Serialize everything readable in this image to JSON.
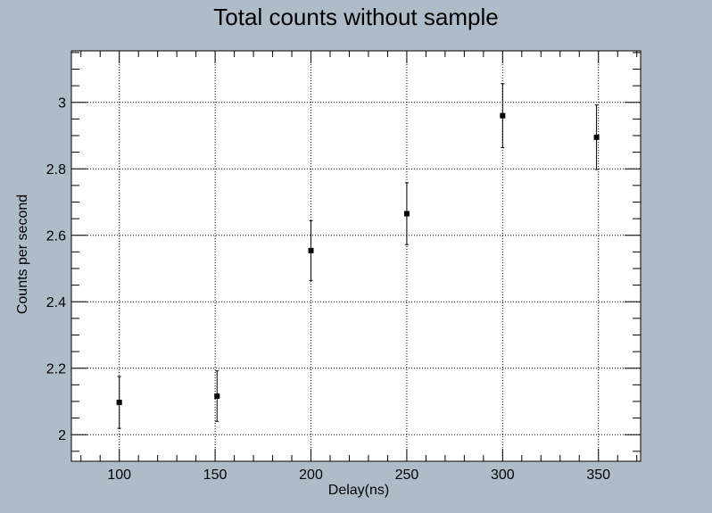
{
  "chart_data": {
    "type": "scatter",
    "title": "Total counts without sample",
    "xlabel": "Delay(ns)",
    "ylabel": "Counts per second",
    "xlim": [
      75,
      372
    ],
    "ylim": [
      1.92,
      3.155
    ],
    "xticks": [
      100,
      150,
      200,
      250,
      300,
      350
    ],
    "yticks": [
      2,
      2.2,
      2.4,
      2.6,
      2.8,
      3
    ],
    "grid": true,
    "points": [
      {
        "x": 100,
        "y": 2.097,
        "err": 0.078
      },
      {
        "x": 151,
        "y": 2.116,
        "err": 0.076
      },
      {
        "x": 200,
        "y": 2.554,
        "err": 0.09
      },
      {
        "x": 250,
        "y": 2.665,
        "err": 0.093
      },
      {
        "x": 300,
        "y": 2.96,
        "err": 0.096
      },
      {
        "x": 349,
        "y": 2.895,
        "err": 0.097
      }
    ],
    "colors": {
      "background": "#aebcc9",
      "frame": "#ffffff",
      "marker": "#000000"
    }
  }
}
